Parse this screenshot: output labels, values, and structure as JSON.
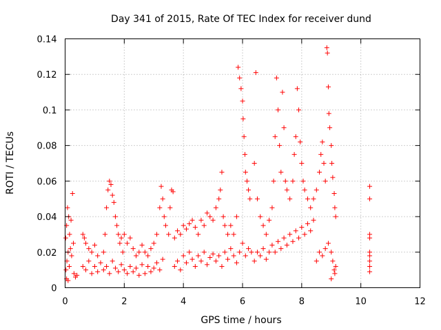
{
  "chart_data": {
    "type": "scatter",
    "title": "Day 341 of 2015, Rate Of TEC Index for receiver dund",
    "xlabel": "GPS time / hours",
    "ylabel": "ROTI / TECUs",
    "xlim": [
      0,
      12
    ],
    "ylim": [
      0,
      0.14
    ],
    "x_ticks": [
      "0",
      "2",
      "4",
      "6",
      "8",
      "10",
      "12"
    ],
    "y_ticks": [
      "0",
      "0.02",
      "0.04",
      "0.06",
      "0.08",
      "0.1",
      "0.12",
      "0.14"
    ],
    "x_tick_values": [
      0,
      2,
      4,
      6,
      8,
      10,
      12
    ],
    "y_tick_values": [
      0,
      0.02,
      0.04,
      0.06,
      0.08,
      0.1,
      0.12,
      0.14
    ],
    "grid": true,
    "marker": "+",
    "color": "#ff0000",
    "series": [
      {
        "name": "ROTI",
        "points": [
          [
            0.02,
            0.028
          ],
          [
            0.05,
            0.035
          ],
          [
            0.08,
            0.045
          ],
          [
            0.12,
            0.04
          ],
          [
            0.15,
            0.03
          ],
          [
            0.2,
            0.038
          ],
          [
            0.25,
            0.053
          ],
          [
            0.03,
            0.01
          ],
          [
            0.06,
            0.015
          ],
          [
            0.1,
            0.02
          ],
          [
            0.14,
            0.012
          ],
          [
            0.18,
            0.022
          ],
          [
            0.22,
            0.018
          ],
          [
            0.28,
            0.025
          ],
          [
            0.3,
            0.008
          ],
          [
            0.35,
            0.006
          ],
          [
            0.4,
            0.007
          ],
          [
            0.05,
            0.005
          ],
          [
            0.1,
            0.004
          ],
          [
            0.6,
            0.03
          ],
          [
            0.65,
            0.028
          ],
          [
            0.7,
            0.025
          ],
          [
            0.8,
            0.022
          ],
          [
            0.9,
            0.02
          ],
          [
            1.0,
            0.024
          ],
          [
            1.1,
            0.018
          ],
          [
            0.6,
            0.012
          ],
          [
            0.7,
            0.01
          ],
          [
            0.8,
            0.015
          ],
          [
            0.9,
            0.008
          ],
          [
            1.0,
            0.012
          ],
          [
            1.1,
            0.009
          ],
          [
            1.2,
            0.014
          ],
          [
            1.3,
            0.02
          ],
          [
            1.35,
            0.03
          ],
          [
            1.4,
            0.045
          ],
          [
            1.45,
            0.055
          ],
          [
            1.5,
            0.06
          ],
          [
            1.55,
            0.058
          ],
          [
            1.6,
            0.052
          ],
          [
            1.65,
            0.048
          ],
          [
            1.7,
            0.04
          ],
          [
            1.75,
            0.035
          ],
          [
            1.8,
            0.03
          ],
          [
            1.85,
            0.025
          ],
          [
            1.9,
            0.028
          ],
          [
            1.95,
            0.02
          ],
          [
            1.3,
            0.01
          ],
          [
            1.4,
            0.012
          ],
          [
            1.5,
            0.008
          ],
          [
            1.6,
            0.015
          ],
          [
            1.7,
            0.011
          ],
          [
            1.8,
            0.009
          ],
          [
            1.9,
            0.013
          ],
          [
            2.0,
            0.03
          ],
          [
            2.1,
            0.025
          ],
          [
            2.2,
            0.028
          ],
          [
            2.3,
            0.022
          ],
          [
            2.4,
            0.018
          ],
          [
            2.5,
            0.02
          ],
          [
            2.6,
            0.024
          ],
          [
            2.0,
            0.01
          ],
          [
            2.1,
            0.008
          ],
          [
            2.2,
            0.012
          ],
          [
            2.3,
            0.009
          ],
          [
            2.4,
            0.011
          ],
          [
            2.5,
            0.007
          ],
          [
            2.6,
            0.013
          ],
          [
            2.7,
            0.02
          ],
          [
            2.8,
            0.018
          ],
          [
            2.9,
            0.022
          ],
          [
            3.0,
            0.025
          ],
          [
            3.1,
            0.03
          ],
          [
            3.2,
            0.045
          ],
          [
            3.25,
            0.057
          ],
          [
            3.3,
            0.05
          ],
          [
            3.35,
            0.04
          ],
          [
            3.4,
            0.035
          ],
          [
            3.5,
            0.03
          ],
          [
            3.55,
            0.045
          ],
          [
            3.6,
            0.055
          ],
          [
            3.65,
            0.054
          ],
          [
            2.7,
            0.008
          ],
          [
            2.8,
            0.012
          ],
          [
            2.9,
            0.009
          ],
          [
            3.0,
            0.011
          ],
          [
            3.1,
            0.014
          ],
          [
            3.2,
            0.01
          ],
          [
            3.3,
            0.016
          ],
          [
            3.7,
            0.028
          ],
          [
            3.8,
            0.032
          ],
          [
            3.9,
            0.03
          ],
          [
            4.0,
            0.035
          ],
          [
            4.1,
            0.033
          ],
          [
            4.2,
            0.036
          ],
          [
            4.3,
            0.038
          ],
          [
            4.4,
            0.034
          ],
          [
            4.5,
            0.03
          ],
          [
            4.6,
            0.038
          ],
          [
            4.7,
            0.035
          ],
          [
            4.8,
            0.042
          ],
          [
            4.9,
            0.04
          ],
          [
            5.0,
            0.038
          ],
          [
            3.7,
            0.012
          ],
          [
            3.8,
            0.015
          ],
          [
            3.9,
            0.01
          ],
          [
            4.0,
            0.018
          ],
          [
            4.1,
            0.014
          ],
          [
            4.2,
            0.02
          ],
          [
            4.3,
            0.016
          ],
          [
            4.4,
            0.012
          ],
          [
            4.5,
            0.018
          ],
          [
            4.6,
            0.015
          ],
          [
            4.7,
            0.02
          ],
          [
            4.8,
            0.013
          ],
          [
            4.9,
            0.017
          ],
          [
            5.0,
            0.019
          ],
          [
            5.1,
            0.045
          ],
          [
            5.2,
            0.05
          ],
          [
            5.3,
            0.065
          ],
          [
            5.25,
            0.055
          ],
          [
            5.35,
            0.04
          ],
          [
            5.4,
            0.035
          ],
          [
            5.5,
            0.03
          ],
          [
            5.6,
            0.035
          ],
          [
            5.7,
            0.03
          ],
          [
            5.8,
            0.04
          ],
          [
            5.85,
            0.124
          ],
          [
            5.9,
            0.118
          ],
          [
            5.95,
            0.112
          ],
          [
            6.0,
            0.105
          ],
          [
            6.02,
            0.095
          ],
          [
            6.05,
            0.085
          ],
          [
            6.08,
            0.075
          ],
          [
            6.1,
            0.065
          ],
          [
            6.15,
            0.06
          ],
          [
            6.2,
            0.055
          ],
          [
            6.25,
            0.05
          ],
          [
            5.1,
            0.015
          ],
          [
            5.2,
            0.018
          ],
          [
            5.3,
            0.012
          ],
          [
            5.4,
            0.02
          ],
          [
            5.5,
            0.016
          ],
          [
            5.6,
            0.022
          ],
          [
            5.7,
            0.018
          ],
          [
            5.8,
            0.014
          ],
          [
            5.9,
            0.02
          ],
          [
            6.0,
            0.025
          ],
          [
            6.1,
            0.018
          ],
          [
            6.2,
            0.022
          ],
          [
            6.3,
            0.02
          ],
          [
            6.4,
            0.07
          ],
          [
            6.45,
            0.121
          ],
          [
            6.5,
            0.05
          ],
          [
            6.6,
            0.04
          ],
          [
            6.7,
            0.035
          ],
          [
            6.8,
            0.03
          ],
          [
            6.9,
            0.038
          ],
          [
            7.0,
            0.045
          ],
          [
            7.05,
            0.06
          ],
          [
            7.1,
            0.085
          ],
          [
            7.15,
            0.118
          ],
          [
            7.2,
            0.1
          ],
          [
            7.25,
            0.08
          ],
          [
            7.3,
            0.065
          ],
          [
            7.35,
            0.11
          ],
          [
            7.4,
            0.09
          ],
          [
            7.45,
            0.06
          ],
          [
            7.5,
            0.055
          ],
          [
            7.6,
            0.05
          ],
          [
            7.7,
            0.06
          ],
          [
            7.75,
            0.075
          ],
          [
            7.8,
            0.085
          ],
          [
            7.85,
            0.112
          ],
          [
            7.9,
            0.1
          ],
          [
            7.95,
            0.082
          ],
          [
            8.0,
            0.07
          ],
          [
            8.05,
            0.06
          ],
          [
            8.1,
            0.055
          ],
          [
            8.2,
            0.05
          ],
          [
            6.4,
            0.015
          ],
          [
            6.5,
            0.02
          ],
          [
            6.6,
            0.018
          ],
          [
            6.7,
            0.022
          ],
          [
            6.8,
            0.016
          ],
          [
            6.9,
            0.02
          ],
          [
            7.0,
            0.024
          ],
          [
            7.1,
            0.02
          ],
          [
            7.2,
            0.026
          ],
          [
            7.3,
            0.022
          ],
          [
            7.4,
            0.028
          ],
          [
            7.5,
            0.024
          ],
          [
            7.6,
            0.03
          ],
          [
            7.7,
            0.026
          ],
          [
            7.8,
            0.032
          ],
          [
            7.9,
            0.028
          ],
          [
            8.0,
            0.034
          ],
          [
            8.1,
            0.03
          ],
          [
            8.2,
            0.036
          ],
          [
            8.3,
            0.032
          ],
          [
            8.4,
            0.038
          ],
          [
            8.3,
            0.045
          ],
          [
            8.4,
            0.05
          ],
          [
            8.5,
            0.055
          ],
          [
            8.6,
            0.065
          ],
          [
            8.65,
            0.075
          ],
          [
            8.7,
            0.082
          ],
          [
            8.75,
            0.07
          ],
          [
            8.8,
            0.06
          ],
          [
            8.85,
            0.135
          ],
          [
            8.87,
            0.132
          ],
          [
            8.9,
            0.113
          ],
          [
            8.92,
            0.098
          ],
          [
            8.95,
            0.09
          ],
          [
            9.0,
            0.08
          ],
          [
            9.02,
            0.07
          ],
          [
            9.05,
            0.062
          ],
          [
            9.1,
            0.053
          ],
          [
            9.12,
            0.045
          ],
          [
            9.15,
            0.04
          ],
          [
            8.5,
            0.015
          ],
          [
            8.6,
            0.02
          ],
          [
            8.7,
            0.018
          ],
          [
            8.8,
            0.022
          ],
          [
            8.9,
            0.025
          ],
          [
            9.0,
            0.02
          ],
          [
            9.05,
            0.015
          ],
          [
            9.1,
            0.01
          ],
          [
            9.12,
            0.008
          ],
          [
            9.15,
            0.012
          ],
          [
            9.0,
            0.005
          ],
          [
            10.3,
            0.057
          ],
          [
            10.3,
            0.05
          ],
          [
            10.3,
            0.03
          ],
          [
            10.3,
            0.028
          ],
          [
            10.3,
            0.02
          ],
          [
            10.3,
            0.018
          ],
          [
            10.3,
            0.015
          ],
          [
            10.3,
            0.012
          ],
          [
            10.3,
            0.009
          ]
        ]
      }
    ]
  }
}
